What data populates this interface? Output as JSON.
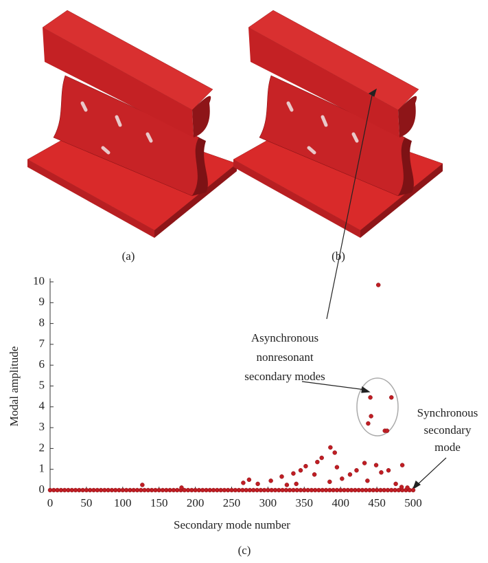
{
  "figure_labels": [
    "(a)",
    "(b)",
    "(c)"
  ],
  "chart_data": {
    "type": "scatter",
    "xlabel": "Secondary mode number",
    "ylabel": "Modal amplitude",
    "color": "#bf1e24",
    "xlim": [
      0,
      500
    ],
    "ylim": [
      0,
      10
    ],
    "xticks": [
      0,
      50,
      100,
      150,
      200,
      250,
      300,
      350,
      400,
      450,
      500
    ],
    "yticks": [
      0,
      1,
      2,
      3,
      4,
      5,
      6,
      7,
      8,
      9,
      10
    ],
    "x": [
      0,
      5,
      10,
      15,
      20,
      25,
      30,
      35,
      40,
      45,
      50,
      55,
      60,
      65,
      70,
      75,
      80,
      85,
      90,
      95,
      100,
      105,
      110,
      115,
      120,
      125,
      130,
      135,
      140,
      145,
      150,
      155,
      160,
      165,
      170,
      175,
      180,
      185,
      190,
      195,
      200,
      205,
      210,
      215,
      220,
      225,
      230,
      235,
      240,
      245,
      250,
      255,
      260,
      265,
      270,
      275,
      280,
      285,
      290,
      295,
      300,
      305,
      310,
      315,
      320,
      325,
      330,
      335,
      340,
      345,
      350,
      355,
      360,
      365,
      370,
      375,
      380,
      385,
      390,
      395,
      400,
      405,
      410,
      415,
      420,
      425,
      430,
      435,
      440,
      445,
      450,
      455,
      460,
      465,
      470,
      475,
      480,
      485,
      490,
      495,
      500,
      127,
      181,
      452,
      441,
      470,
      442,
      438,
      461,
      464,
      386,
      392,
      374,
      368,
      352,
      433,
      449,
      485,
      345,
      335,
      319,
      274,
      286,
      422,
      456,
      466,
      413,
      402,
      304,
      266,
      395,
      364,
      326,
      339,
      385,
      437,
      476,
      484,
      492
    ],
    "y": [
      0,
      0,
      0,
      0,
      0,
      0,
      0,
      0,
      0,
      0,
      0,
      0,
      0,
      0,
      0,
      0,
      0,
      0,
      0,
      0,
      0,
      0,
      0,
      0,
      0,
      0,
      0,
      0,
      0,
      0,
      0,
      0,
      0,
      0,
      0,
      0,
      0,
      0,
      0,
      0,
      0,
      0,
      0,
      0,
      0,
      0,
      0,
      0,
      0,
      0,
      0,
      0,
      0,
      0,
      0,
      0,
      0,
      0,
      0,
      0,
      0,
      0,
      0,
      0,
      0,
      0,
      0,
      0,
      0,
      0,
      0,
      0,
      0,
      0,
      0,
      0,
      0,
      0,
      0,
      0,
      0,
      0,
      0,
      0,
      0,
      0,
      0,
      0,
      0,
      0,
      0,
      0,
      0,
      0,
      0,
      0,
      0,
      0,
      0,
      0,
      0,
      0.25,
      0.12,
      9.85,
      4.45,
      4.45,
      3.55,
      3.2,
      2.85,
      2.85,
      2.05,
      1.8,
      1.55,
      1.35,
      1.15,
      1.3,
      1.2,
      1.2,
      0.95,
      0.8,
      0.65,
      0.5,
      0.3,
      0.95,
      0.85,
      0.95,
      0.75,
      0.55,
      0.45,
      0.35,
      1.1,
      0.75,
      0.25,
      0.3,
      0.4,
      0.45,
      0.3,
      0.15,
      0.12
    ],
    "annotations": [
      {
        "lines": [
          "Asynchronous",
          "nonresonant",
          "secondary modes"
        ]
      },
      {
        "lines": [
          "Synchronous",
          "secondary",
          "mode"
        ]
      }
    ]
  }
}
